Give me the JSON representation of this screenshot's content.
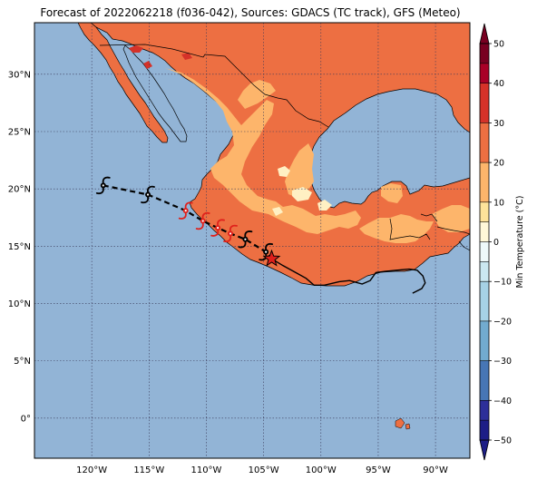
{
  "title": "Forecast of 2022062218 (f036-042), Sources: GDACS (TC track), GFS (Meteo)",
  "map": {
    "lon_range": [
      -125,
      -87
    ],
    "lat_range": [
      -3.5,
      34.5
    ],
    "lon_ticks": [
      {
        "value": -120,
        "label": "120°W"
      },
      {
        "value": -115,
        "label": "115°W"
      },
      {
        "value": -110,
        "label": "110°W"
      },
      {
        "value": -105,
        "label": "105°W"
      },
      {
        "value": -100,
        "label": "100°W"
      },
      {
        "value": -95,
        "label": "95°W"
      },
      {
        "value": -90,
        "label": "90°W"
      }
    ],
    "lat_ticks": [
      {
        "value": 30,
        "label": "30°N"
      },
      {
        "value": 25,
        "label": "25°N"
      },
      {
        "value": 20,
        "label": "20°N"
      },
      {
        "value": 15,
        "label": "15°N"
      },
      {
        "value": 10,
        "label": "10°N"
      },
      {
        "value": 5,
        "label": "5°N"
      },
      {
        "value": 0,
        "label": "0°"
      }
    ],
    "grid": true,
    "colors": {
      "ocean": "#92b4d6",
      "land_warm": "#ed6f42",
      "land_mild": "#fdb56b",
      "land_cool": "#fff0c3",
      "land_hot": "#d53229",
      "track_past": "#000000",
      "track_forecast": "#000000",
      "current_position": "#e0201b"
    },
    "track": {
      "points": [
        {
          "lon": -119.0,
          "lat": 20.3,
          "symbol": "hurricane",
          "color": "#000000"
        },
        {
          "lon": -115.1,
          "lat": 19.5,
          "symbol": "hurricane",
          "color": "#000000"
        },
        {
          "lon": -111.8,
          "lat": 18.1,
          "symbol": "hurricane",
          "color": "#e0201b"
        },
        {
          "lon": -110.3,
          "lat": 17.2,
          "symbol": "hurricane",
          "color": "#e0201b"
        },
        {
          "lon": -109.0,
          "lat": 16.6,
          "symbol": "hurricane",
          "color": "#e0201b"
        },
        {
          "lon": -107.9,
          "lat": 16.1,
          "symbol": "hurricane",
          "color": "#e0201b"
        },
        {
          "lon": -106.6,
          "lat": 15.6,
          "symbol": "hurricane",
          "color": "#000000"
        },
        {
          "lon": -104.8,
          "lat": 14.5,
          "symbol": "hurricane",
          "color": "#000000"
        }
      ],
      "current": {
        "lon": -104.3,
        "lat": 13.9,
        "symbol": "star"
      },
      "past_track": [
        [
          -104.3,
          13.9
        ],
        [
          -103.3,
          13.3
        ],
        [
          -102.2,
          12.7
        ],
        [
          -101.3,
          12.2
        ],
        [
          -100.6,
          11.6
        ],
        [
          -99.7,
          11.6
        ],
        [
          -98.4,
          11.9
        ],
        [
          -97.5,
          12.0
        ],
        [
          -96.4,
          11.7
        ],
        [
          -95.7,
          12.0
        ],
        [
          -95.2,
          12.7
        ],
        [
          -94.4,
          12.8
        ],
        [
          -93.4,
          12.9
        ],
        [
          -92.3,
          13.0
        ],
        [
          -91.6,
          12.9
        ],
        [
          -91.1,
          12.4
        ],
        [
          -90.9,
          11.8
        ],
        [
          -91.2,
          11.3
        ],
        [
          -92.0,
          10.9
        ]
      ]
    }
  },
  "colorbar": {
    "label": "Min Temperature (°C)",
    "ticks": [
      50,
      40,
      30,
      20,
      10,
      0,
      -10,
      -20,
      -30,
      -40,
      -50
    ],
    "levels": [
      -50,
      -45,
      -40,
      -30,
      -20,
      -10,
      -5,
      0,
      5,
      10,
      20,
      30,
      40,
      45,
      50
    ],
    "bands": [
      {
        "from": 45,
        "to": 50,
        "color": "#780021"
      },
      {
        "from": 40,
        "to": 45,
        "color": "#a90027"
      },
      {
        "from": 30,
        "to": 40,
        "color": "#d53229"
      },
      {
        "from": 20,
        "to": 30,
        "color": "#ed6f42"
      },
      {
        "from": 10,
        "to": 20,
        "color": "#fdb56b"
      },
      {
        "from": 5,
        "to": 10,
        "color": "#fee39a"
      },
      {
        "from": 0,
        "to": 5,
        "color": "#fff8d8"
      },
      {
        "from": -5,
        "to": 0,
        "color": "#eef9fa"
      },
      {
        "from": -10,
        "to": -5,
        "color": "#cbe8f1"
      },
      {
        "from": -20,
        "to": -10,
        "color": "#a6d2e6"
      },
      {
        "from": -30,
        "to": -20,
        "color": "#72abcf"
      },
      {
        "from": -40,
        "to": -30,
        "color": "#4776b5"
      },
      {
        "from": -45,
        "to": -40,
        "color": "#2d2f99"
      },
      {
        "from": -50,
        "to": -45,
        "color": "#1d1e86"
      }
    ]
  }
}
